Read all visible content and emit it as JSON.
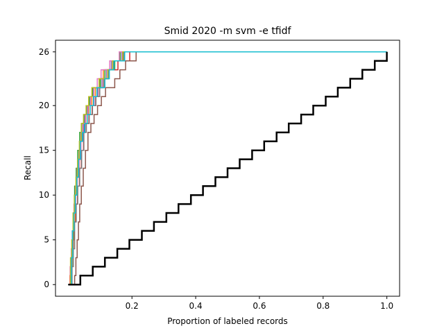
{
  "chart_data": {
    "type": "line",
    "title": "Smid 2020 -m svm -e tfidf",
    "xlabel": "Proportion of labeled records",
    "ylabel": "Recall",
    "xlim": [
      -0.04,
      1.04
    ],
    "ylim": [
      -1.3,
      27.3
    ],
    "x_ticks": [
      0.2,
      0.4,
      0.6,
      0.8,
      1.0
    ],
    "x_tick_labels": [
      "0.2",
      "0.4",
      "0.6",
      "0.8",
      "1.0"
    ],
    "y_ticks": [
      0,
      5,
      10,
      15,
      20,
      26
    ],
    "y_tick_labels": [
      "0",
      "5",
      "10",
      "15",
      "20",
      "26"
    ],
    "grid": false,
    "legend": "none",
    "colors": [
      "#1f77b4",
      "#ff7f0e",
      "#2ca02c",
      "#d62728",
      "#9467bd",
      "#8c564b",
      "#e377c2",
      "#7f7f7f",
      "#bcbd22",
      "#17becf"
    ],
    "series": [
      {
        "color": "#1f77b4",
        "x": [
          0.0,
          0.01,
          0.013,
          0.017,
          0.021,
          0.026,
          0.031,
          0.037,
          0.043,
          0.05,
          0.058,
          0.067,
          0.077,
          0.088,
          0.1,
          0.113,
          0.127,
          0.142,
          0.157,
          0.172,
          0.187,
          1.0
        ],
        "y": [
          0,
          4,
          6,
          8,
          10,
          12,
          14,
          16,
          17,
          19,
          20,
          21,
          22,
          22,
          23,
          23,
          24,
          25,
          25,
          26,
          26,
          26
        ]
      },
      {
        "color": "#ff7f0e",
        "x": [
          0.0,
          0.005,
          0.011,
          0.016,
          0.022,
          0.028,
          0.034,
          0.04,
          0.047,
          0.055,
          0.064,
          0.074,
          0.085,
          0.097,
          0.11,
          0.124,
          0.139,
          0.155,
          0.172,
          1.0
        ],
        "y": [
          0,
          1,
          4,
          7,
          10,
          13,
          15,
          17,
          18,
          19,
          20,
          21,
          22,
          23,
          24,
          24,
          25,
          25,
          26,
          26
        ]
      },
      {
        "color": "#2ca02c",
        "x": [
          0.0,
          0.008,
          0.012,
          0.016,
          0.02,
          0.025,
          0.03,
          0.036,
          0.042,
          0.049,
          0.057,
          0.066,
          0.076,
          0.088,
          0.101,
          0.115,
          0.13,
          0.146,
          0.163,
          1.0
        ],
        "y": [
          0,
          2,
          5,
          8,
          11,
          13,
          15,
          17,
          18,
          19,
          20,
          21,
          22,
          22,
          23,
          24,
          24,
          25,
          26,
          26
        ]
      },
      {
        "color": "#d62728",
        "x": [
          0.0,
          0.011,
          0.015,
          0.019,
          0.024,
          0.029,
          0.035,
          0.041,
          0.048,
          0.056,
          0.065,
          0.075,
          0.086,
          0.098,
          0.111,
          0.125,
          0.14,
          0.156,
          0.174,
          0.193,
          1.0
        ],
        "y": [
          0,
          3,
          5,
          7,
          9,
          11,
          13,
          15,
          17,
          18,
          19,
          20,
          21,
          22,
          23,
          24,
          24,
          25,
          25,
          26,
          26
        ]
      },
      {
        "color": "#9467bd",
        "x": [
          0.0,
          0.009,
          0.014,
          0.018,
          0.023,
          0.028,
          0.034,
          0.04,
          0.047,
          0.054,
          0.062,
          0.071,
          0.081,
          0.093,
          0.106,
          0.12,
          0.135,
          0.151,
          0.168,
          1.0
        ],
        "y": [
          0,
          3,
          6,
          8,
          10,
          12,
          14,
          16,
          18,
          19,
          20,
          20,
          21,
          22,
          23,
          24,
          25,
          25,
          26,
          26
        ]
      },
      {
        "color": "#8c564b",
        "x": [
          0.0,
          0.02,
          0.024,
          0.028,
          0.032,
          0.036,
          0.041,
          0.047,
          0.054,
          0.062,
          0.071,
          0.081,
          0.092,
          0.104,
          0.117,
          0.131,
          0.146,
          0.162,
          0.18,
          0.2,
          0.213,
          1.0
        ],
        "y": [
          0,
          1,
          3,
          5,
          7,
          9,
          11,
          13,
          15,
          17,
          18,
          19,
          20,
          21,
          22,
          22,
          23,
          24,
          25,
          25,
          26,
          26
        ]
      },
      {
        "color": "#e377c2",
        "x": [
          0.0,
          0.006,
          0.01,
          0.014,
          0.018,
          0.023,
          0.028,
          0.034,
          0.04,
          0.046,
          0.053,
          0.061,
          0.07,
          0.08,
          0.091,
          0.103,
          0.116,
          0.13,
          0.145,
          0.16,
          1.0
        ],
        "y": [
          0,
          2,
          4,
          6,
          9,
          11,
          13,
          15,
          17,
          18,
          19,
          20,
          21,
          22,
          23,
          24,
          24,
          25,
          25,
          26,
          26
        ]
      },
      {
        "color": "#7f7f7f",
        "x": [
          0.0,
          0.012,
          0.016,
          0.02,
          0.025,
          0.03,
          0.036,
          0.042,
          0.049,
          0.057,
          0.066,
          0.076,
          0.087,
          0.099,
          0.112,
          0.126,
          0.141,
          0.157,
          0.174,
          1.0
        ],
        "y": [
          0,
          2,
          4,
          7,
          9,
          11,
          13,
          15,
          17,
          18,
          19,
          20,
          21,
          22,
          23,
          24,
          25,
          25,
          26,
          26
        ]
      },
      {
        "color": "#bcbd22",
        "x": [
          0.0,
          0.007,
          0.011,
          0.015,
          0.019,
          0.024,
          0.029,
          0.035,
          0.041,
          0.048,
          0.056,
          0.064,
          0.074,
          0.085,
          0.097,
          0.11,
          0.124,
          0.139,
          0.155,
          0.171,
          1.0
        ],
        "y": [
          0,
          3,
          5,
          8,
          10,
          12,
          14,
          16,
          18,
          19,
          20,
          21,
          22,
          22,
          23,
          23,
          24,
          25,
          25,
          26,
          26
        ]
      },
      {
        "color": "#17becf",
        "x": [
          0.0,
          0.01,
          0.014,
          0.018,
          0.022,
          0.027,
          0.032,
          0.038,
          0.045,
          0.052,
          0.06,
          0.069,
          0.079,
          0.09,
          0.102,
          0.115,
          0.129,
          0.144,
          0.16,
          0.177,
          1.0
        ],
        "y": [
          0,
          3,
          6,
          8,
          10,
          12,
          14,
          16,
          17,
          18,
          19,
          20,
          21,
          22,
          22,
          23,
          24,
          25,
          25,
          26,
          26
        ]
      },
      {
        "color": "#000000",
        "line_width": 2.5,
        "x": [
          0.0,
          0.038,
          0.077,
          0.115,
          0.154,
          0.192,
          0.231,
          0.269,
          0.308,
          0.346,
          0.385,
          0.423,
          0.462,
          0.5,
          0.538,
          0.577,
          0.615,
          0.654,
          0.692,
          0.731,
          0.769,
          0.808,
          0.846,
          0.885,
          0.923,
          0.962,
          1.0
        ],
        "y": [
          0,
          1,
          2,
          3,
          4,
          5,
          6,
          7,
          8,
          9,
          10,
          11,
          12,
          13,
          14,
          15,
          16,
          17,
          18,
          19,
          20,
          21,
          22,
          23,
          24,
          25,
          26
        ]
      }
    ]
  }
}
